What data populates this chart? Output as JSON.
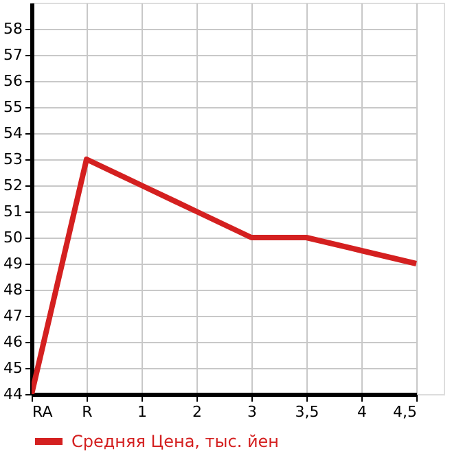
{
  "chart_data": {
    "type": "line",
    "categories": [
      "RA",
      "R",
      "1",
      "2",
      "3",
      "3,5",
      "4",
      "4,5"
    ],
    "series": [
      {
        "name": "Средняя Цена, тыс. йен",
        "color": "#d42020",
        "values": [
          44,
          53,
          52,
          51,
          50,
          50,
          49.5,
          49
        ]
      }
    ],
    "ylim": [
      44,
      59
    ],
    "yticks": [
      44,
      45,
      46,
      47,
      48,
      49,
      50,
      51,
      52,
      53,
      54,
      55,
      56,
      57,
      58
    ],
    "grid": true,
    "legend": "bottom",
    "marker": "none",
    "line_style": "solid"
  }
}
